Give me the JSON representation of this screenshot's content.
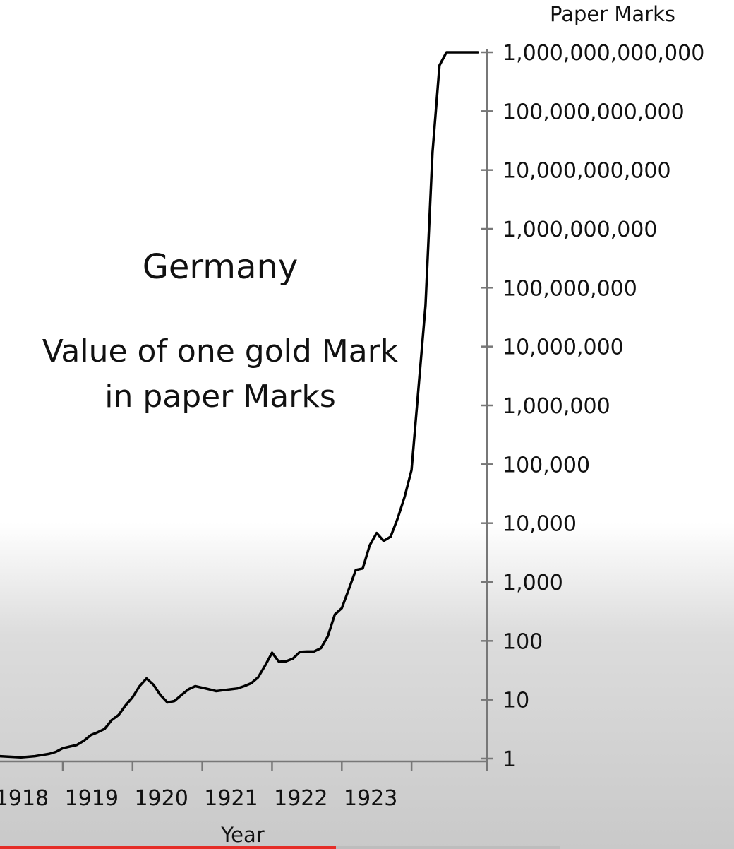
{
  "chart_data": {
    "type": "line",
    "title": "Germany",
    "subtitle_lines": [
      "Value of one gold Mark",
      "in paper Marks"
    ],
    "xlabel": "Year",
    "ylabel": "Paper Marks",
    "y_scale": "log",
    "xlim": [
      1917.1,
      1923.98
    ],
    "ylim": [
      1,
      1000000000000
    ],
    "x_ticks": [
      1918,
      1919,
      1920,
      1921,
      1922,
      1923
    ],
    "x_tick_labels": [
      "1918",
      "1919",
      "1920",
      "1921",
      "1922",
      "1923"
    ],
    "y_ticks": [
      1,
      10,
      100,
      1000,
      10000,
      100000,
      1000000,
      10000000,
      100000000,
      1000000000,
      10000000000,
      100000000000,
      1000000000000
    ],
    "y_tick_labels": [
      "1",
      "10",
      "100",
      "1,000",
      "10,000",
      "100,000",
      "1,000,000",
      "10,000,000",
      "100,000,000",
      "1,000,000,000",
      "10,000,000,000",
      "100,000,000,000",
      "1,000,000,000,000"
    ],
    "grid": false,
    "legend": "none",
    "series": [
      {
        "x": [
          1917.1,
          1917.4,
          1917.6,
          1917.8,
          1917.9,
          1918.0,
          1918.1,
          1918.2,
          1918.3,
          1918.4,
          1918.5,
          1918.6,
          1918.7,
          1918.8,
          1918.9,
          1919.0,
          1919.1,
          1919.2,
          1919.3,
          1919.4,
          1919.5,
          1919.6,
          1919.7,
          1919.8,
          1919.9,
          1920.0,
          1920.1,
          1920.2,
          1920.3,
          1920.4,
          1920.5,
          1920.6,
          1920.7,
          1920.8,
          1920.9,
          1921.0,
          1921.1,
          1921.2,
          1921.3,
          1921.4,
          1921.5,
          1921.6,
          1921.7,
          1921.8,
          1921.9,
          1922.0,
          1922.1,
          1922.2,
          1922.3,
          1922.4,
          1922.5,
          1922.6,
          1922.7,
          1922.8,
          1922.9,
          1923.0,
          1923.1,
          1923.2,
          1923.3,
          1923.4,
          1923.5,
          1923.6,
          1923.7,
          1923.8,
          1923.9,
          1923.95
        ],
        "y": [
          1.1,
          1.05,
          1.1,
          1.2,
          1.3,
          1.5,
          1.6,
          1.7,
          2.0,
          2.5,
          2.8,
          3.2,
          4.5,
          5.5,
          8.0,
          11,
          17,
          23,
          18,
          12,
          9,
          9.5,
          12,
          15,
          17,
          16,
          15,
          14,
          14.5,
          15,
          15.5,
          17,
          19,
          24,
          38,
          63,
          44,
          45,
          50,
          65,
          66,
          66,
          75,
          120,
          280,
          360,
          750,
          1600,
          1700,
          4200,
          6800,
          5000,
          5900,
          12000,
          28000,
          80000,
          2000000,
          50000000,
          20000000000,
          600000000000,
          1000000000000,
          1000000000000,
          1000000000000,
          1000000000000,
          1000000000000,
          1000000000000
        ]
      }
    ]
  },
  "player": {
    "progress_fraction": 0.6
  }
}
